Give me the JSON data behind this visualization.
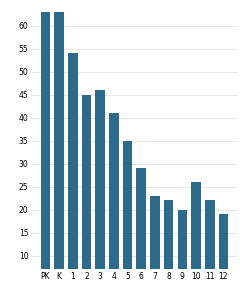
{
  "categories": [
    "PK",
    "K",
    "1",
    "2",
    "3",
    "4",
    "5",
    "6",
    "7",
    "8",
    "9",
    "10",
    "11",
    "12"
  ],
  "values": [
    63,
    63,
    54,
    45,
    46,
    41,
    35,
    29,
    23,
    22,
    20,
    26,
    22,
    19
  ],
  "bar_color": "#2e6b8a",
  "ylim": [
    7,
    65
  ],
  "yticks": [
    10,
    15,
    20,
    25,
    30,
    35,
    40,
    45,
    50,
    55,
    60
  ],
  "background_color": "#ffffff",
  "tick_fontsize": 5.5,
  "bar_width": 0.7,
  "grid_color": "#dddddd",
  "figsize": [
    2.4,
    2.96
  ],
  "dpi": 100
}
